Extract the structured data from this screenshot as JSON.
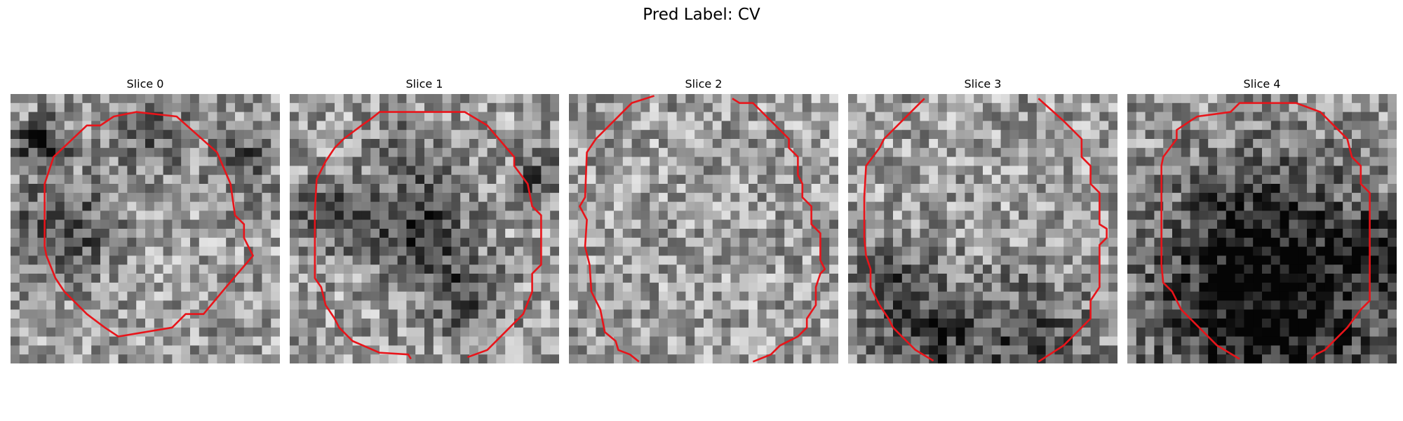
{
  "figure": {
    "title": "Pred Label: CV"
  },
  "panels": [
    {
      "title": "Slice 0",
      "seed": 11,
      "dark_regions": "left-center"
    },
    {
      "title": "Slice 1",
      "seed": 23,
      "dark_regions": "center"
    },
    {
      "title": "Slice 2",
      "seed": 37,
      "dark_regions": "none"
    },
    {
      "title": "Slice 3",
      "seed": 41,
      "dark_regions": "bottom"
    },
    {
      "title": "Slice 4",
      "seed": 59,
      "dark_regions": "bottom-band"
    }
  ],
  "colors": {
    "contour": "#e8141a",
    "background": "#ffffff"
  },
  "image_type": "grayscale microscopy patch with red segmentation contour"
}
